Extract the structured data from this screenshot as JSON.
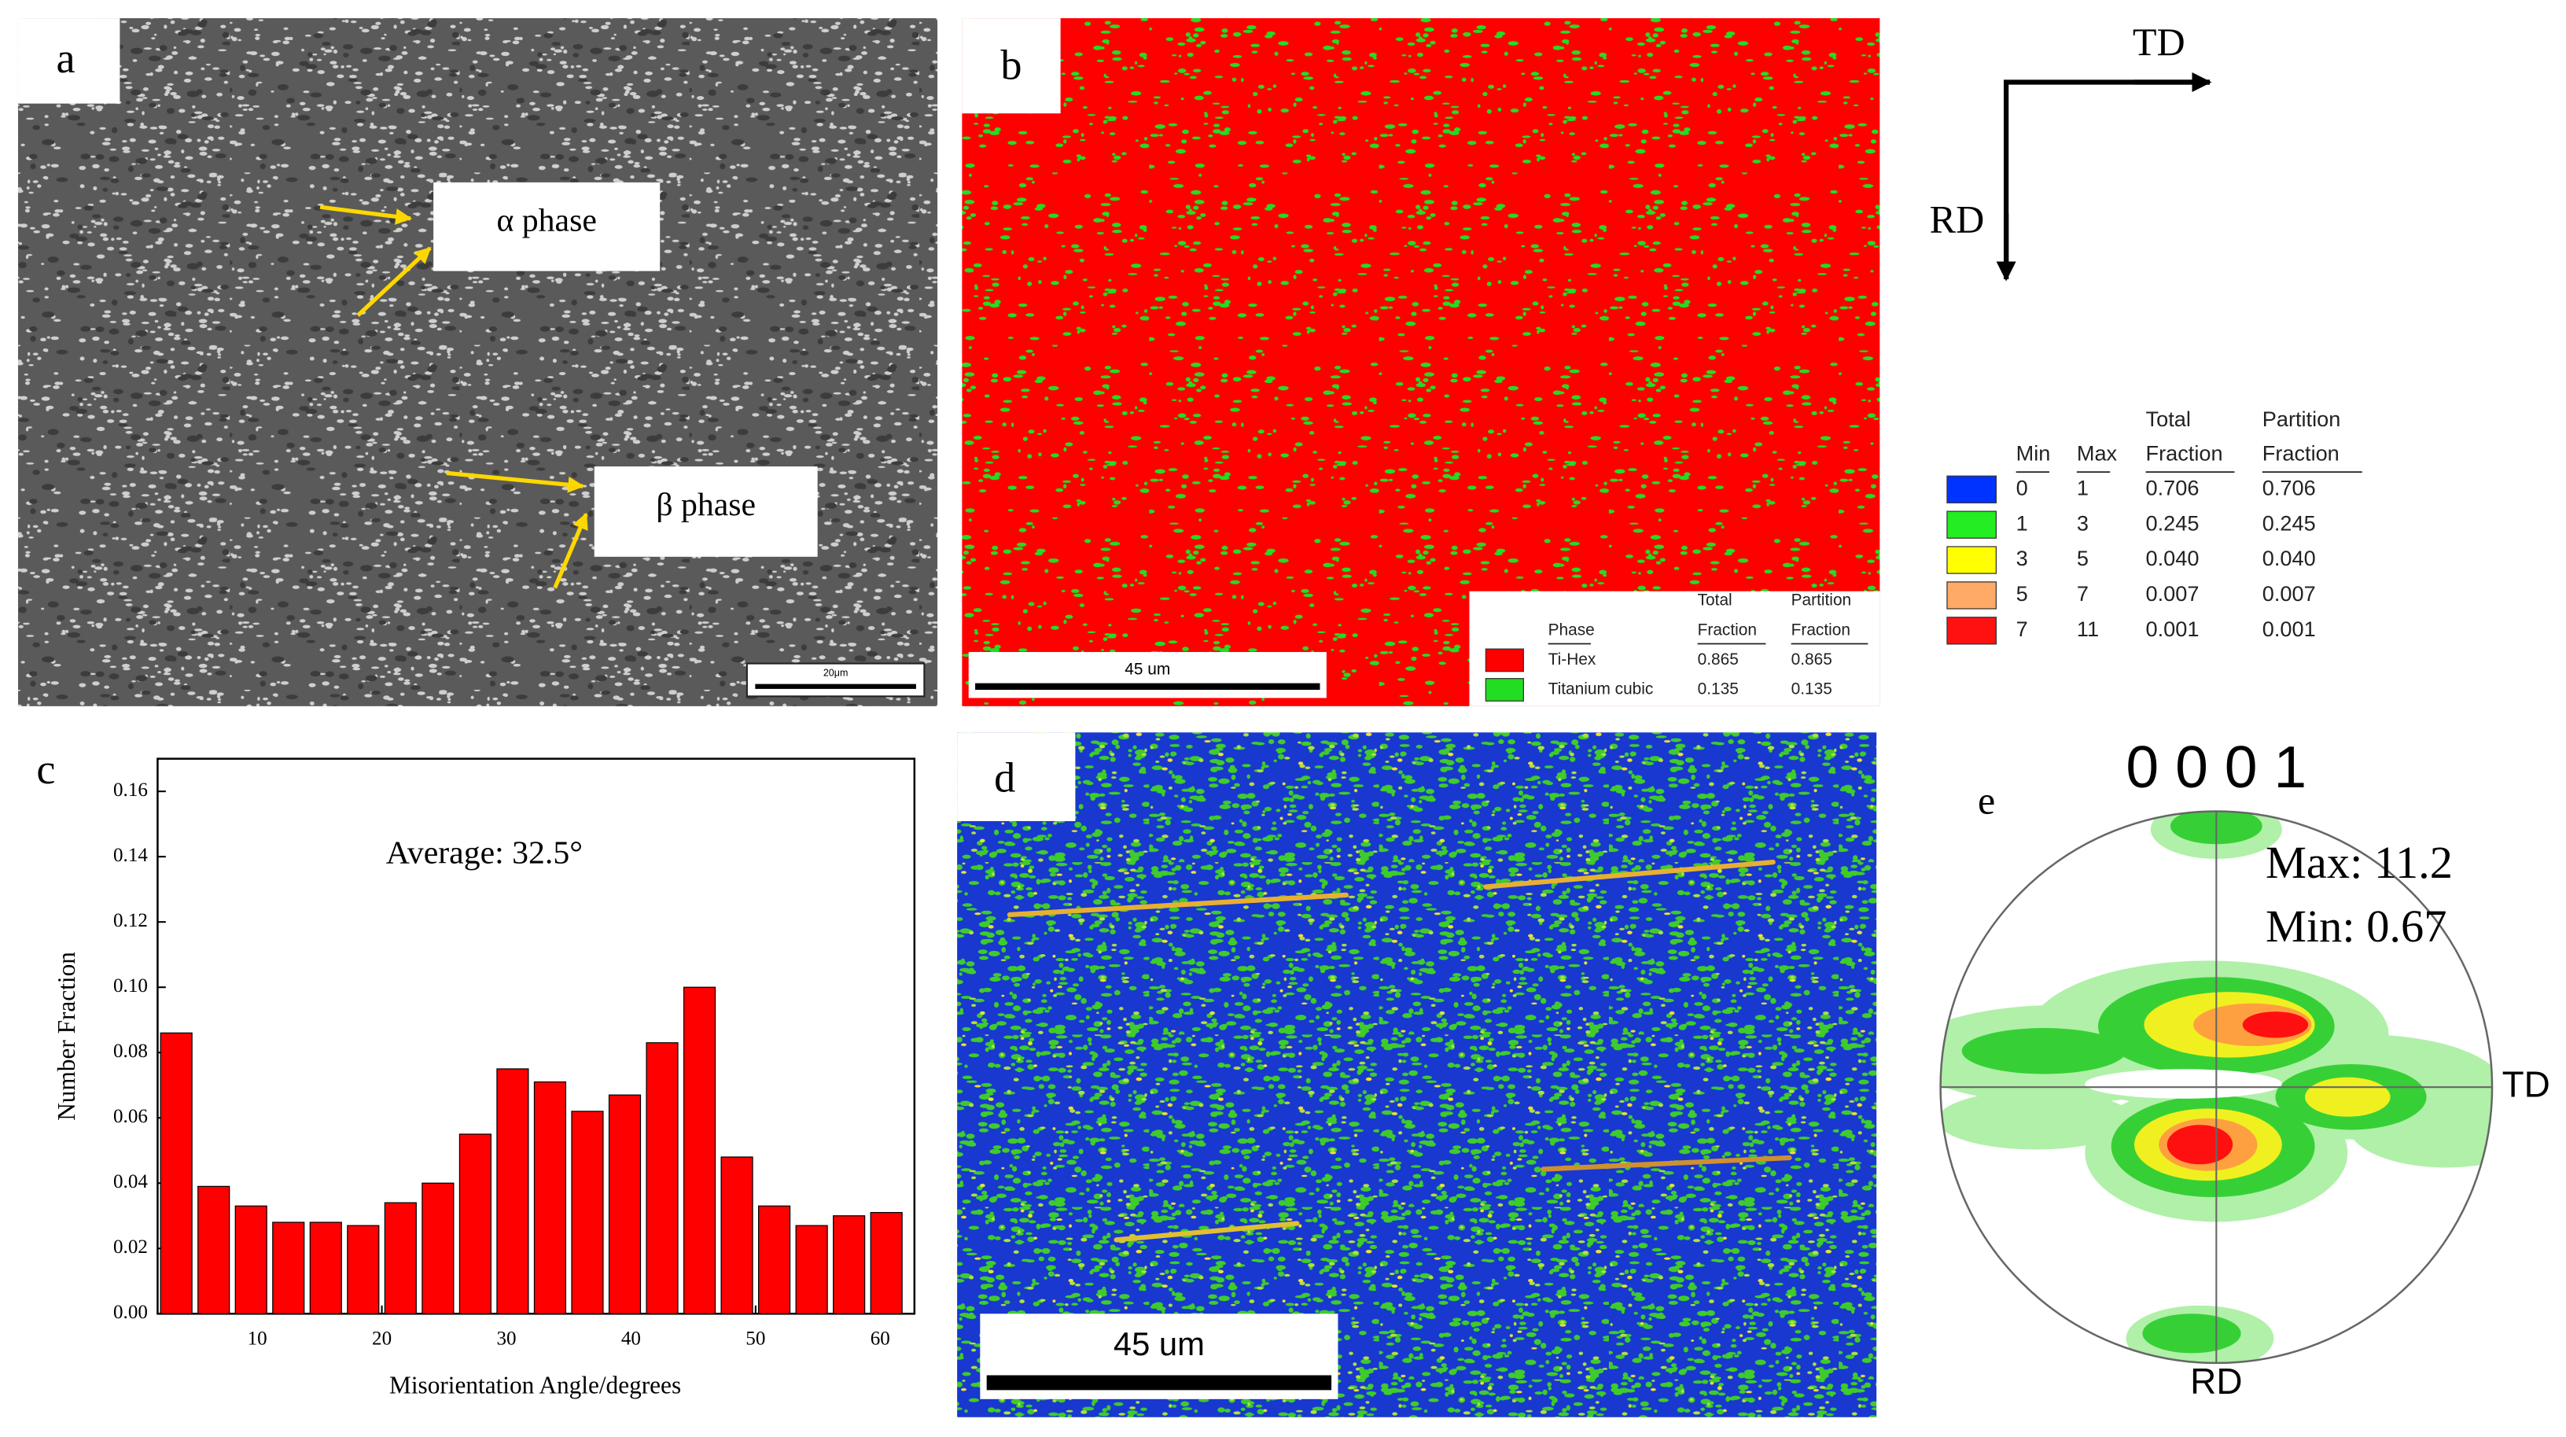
{
  "panel_a": {
    "label": "a",
    "annotations": [
      "α phase",
      "β phase"
    ],
    "scale_bar": "20μm"
  },
  "panel_b": {
    "label": "b",
    "scale_bar": "45 um",
    "legend": {
      "headers": [
        [
          "Phase"
        ],
        [
          "Total",
          "Fraction"
        ],
        [
          "Partition",
          "Fraction"
        ]
      ],
      "rows": [
        {
          "color": "#ff0000",
          "cells": [
            "Ti-Hex",
            "0.865",
            "0.865"
          ]
        },
        {
          "color": "#22dd22",
          "cells": [
            "Titanium cubic",
            "0.135",
            "0.135"
          ]
        }
      ]
    }
  },
  "axes": {
    "x": "TD",
    "y": "RD"
  },
  "kam_legend": {
    "headers": [
      [
        "Min"
      ],
      [
        "Max"
      ],
      [
        "Total",
        "Fraction"
      ],
      [
        "Partition",
        "Fraction"
      ]
    ],
    "rows": [
      {
        "color": "#0033ff",
        "cells": [
          "0",
          "1",
          "0.706",
          "0.706"
        ]
      },
      {
        "color": "#22ee22",
        "cells": [
          "1",
          "3",
          "0.245",
          "0.245"
        ]
      },
      {
        "color": "#ffff00",
        "cells": [
          "3",
          "5",
          "0.040",
          "0.040"
        ]
      },
      {
        "color": "#ffaa66",
        "cells": [
          "5",
          "7",
          "0.007",
          "0.007"
        ]
      },
      {
        "color": "#ff1111",
        "cells": [
          "7",
          "11",
          "0.001",
          "0.001"
        ]
      }
    ]
  },
  "panel_d": {
    "label": "d",
    "scale_bar": "45 um"
  },
  "panel_e": {
    "label": "e",
    "title": "0 0 0 1",
    "max": "Max: 11.2",
    "min": "Min: 0.67",
    "td": "TD",
    "rd": "RD"
  },
  "chart_data": {
    "type": "bar",
    "label": "c",
    "annotation": "Average: 32.5°",
    "xlabel": "Misorientation Angle/degrees",
    "ylabel": "Number Fraction",
    "x": [
      3.5,
      6.5,
      9.5,
      12.5,
      15.5,
      18.5,
      21.5,
      24.5,
      27.5,
      30.5,
      33.5,
      36.5,
      39.5,
      42.5,
      45.5,
      48.5,
      51.5,
      54.5,
      57.5,
      60.5
    ],
    "values": [
      0.086,
      0.039,
      0.033,
      0.028,
      0.028,
      0.027,
      0.034,
      0.04,
      0.055,
      0.075,
      0.071,
      0.062,
      0.067,
      0.083,
      0.1,
      0.048,
      0.033,
      0.027,
      0.03,
      0.031
    ],
    "color": "#ff0000",
    "xlim": [
      2,
      62.75
    ],
    "xticks": [
      10,
      20,
      30,
      40,
      50,
      60
    ],
    "ylim": [
      0,
      0.17
    ],
    "yticks": [
      {
        "value": 0,
        "label": "0.00"
      },
      {
        "value": 0.02,
        "label": "0.02"
      },
      {
        "value": 0.04,
        "label": "0.04"
      },
      {
        "value": 0.06,
        "label": "0.06"
      },
      {
        "value": 0.08,
        "label": "0.08"
      },
      {
        "value": 0.1,
        "label": "0.10"
      },
      {
        "value": 0.12,
        "label": "0.12"
      },
      {
        "value": 0.14,
        "label": "0.14"
      },
      {
        "value": 0.16,
        "label": "0.16"
      }
    ],
    "grid": false
  }
}
